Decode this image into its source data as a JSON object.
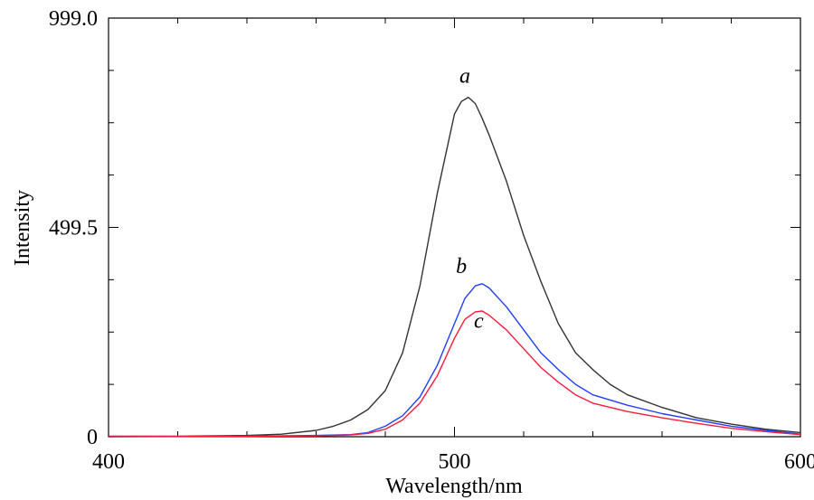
{
  "chart_data": {
    "type": "line",
    "title": "",
    "xlabel": "Wavelength/nm",
    "ylabel": "Intensity",
    "xlim": [
      400,
      600
    ],
    "ylim": [
      0,
      999.0
    ],
    "x_ticks": [
      400,
      500,
      600
    ],
    "x_tick_labels": [
      "400",
      "500",
      "600"
    ],
    "y_ticks": [
      0,
      499.5,
      999.0
    ],
    "y_tick_labels": [
      "0",
      "499.5",
      "999.0"
    ],
    "grid": false,
    "legend": "none",
    "series": [
      {
        "label": "a",
        "color": "#333333",
        "x": [
          400,
          420,
          440,
          450,
          460,
          465,
          470,
          475,
          480,
          485,
          490,
          495,
          500,
          502,
          504,
          506,
          508,
          510,
          515,
          520,
          525,
          530,
          535,
          540,
          545,
          550,
          560,
          570,
          580,
          590,
          600
        ],
        "y": [
          1,
          1,
          3,
          6,
          15,
          25,
          40,
          65,
          110,
          200,
          360,
          580,
          770,
          800,
          810,
          795,
          760,
          720,
          610,
          480,
          370,
          270,
          200,
          160,
          125,
          100,
          70,
          45,
          30,
          18,
          10
        ]
      },
      {
        "label": "b",
        "color": "#1f3fff",
        "x": [
          400,
          440,
          460,
          470,
          475,
          480,
          485,
          490,
          495,
          500,
          503,
          506,
          508,
          510,
          515,
          520,
          525,
          530,
          535,
          540,
          550,
          560,
          570,
          580,
          590,
          600
        ],
        "y": [
          0,
          1,
          3,
          5,
          10,
          25,
          50,
          95,
          170,
          270,
          330,
          360,
          365,
          355,
          310,
          255,
          200,
          160,
          125,
          100,
          75,
          55,
          40,
          25,
          15,
          6
        ]
      },
      {
        "label": "c",
        "color": "#ff1a3a",
        "x": [
          400,
          440,
          460,
          470,
          475,
          480,
          485,
          490,
          495,
          500,
          503,
          506,
          508,
          510,
          515,
          520,
          525,
          530,
          535,
          540,
          550,
          560,
          570,
          580,
          590,
          600
        ],
        "y": [
          0,
          1,
          2,
          4,
          8,
          18,
          40,
          80,
          145,
          235,
          280,
          298,
          300,
          290,
          255,
          210,
          165,
          130,
          100,
          80,
          60,
          45,
          32,
          20,
          12,
          5
        ]
      }
    ],
    "annotations": [
      {
        "text": "a",
        "x": 503,
        "y": 845
      },
      {
        "text": "b",
        "x": 502,
        "y": 390
      },
      {
        "text": "c",
        "x": 507,
        "y": 260
      }
    ]
  }
}
